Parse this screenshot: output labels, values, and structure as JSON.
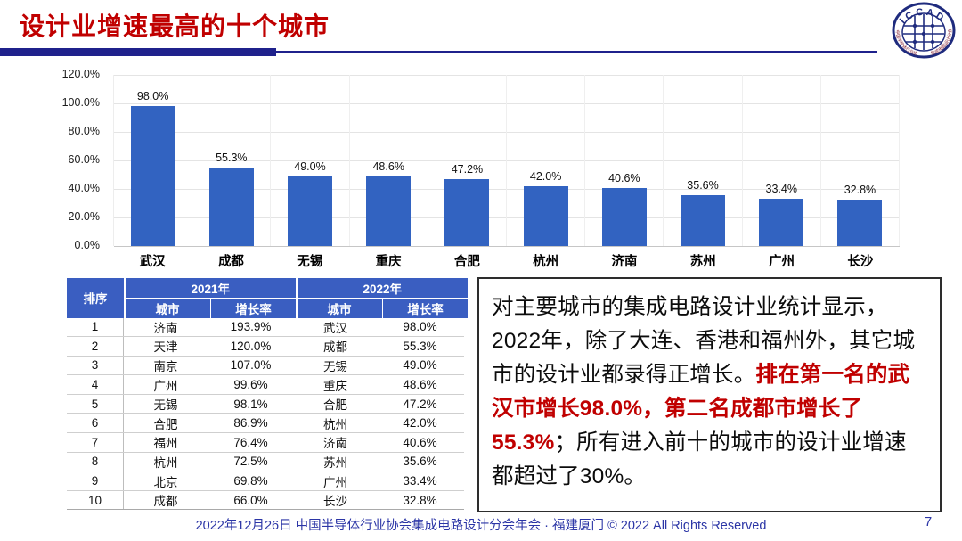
{
  "colors": {
    "title_red": "#C00000",
    "text_red": "#C00000",
    "bar_blue": "#3263C1",
    "header_blue": "#3A5EC1",
    "navy": "#1F218C",
    "footer_blue": "#2B35A6"
  },
  "header": {
    "title": "设计业增速最高的十个城市",
    "logo": {
      "name": "ICCAD",
      "arc_text": "I C C A D",
      "left_text": "中国半导体行业协会",
      "right_text": "集成电路设计分会"
    }
  },
  "chart_data": {
    "type": "bar",
    "title": "",
    "categories": [
      "武汉",
      "成都",
      "无锡",
      "重庆",
      "合肥",
      "杭州",
      "济南",
      "苏州",
      "广州",
      "长沙"
    ],
    "values": [
      98.0,
      55.3,
      49.0,
      48.6,
      47.2,
      42.0,
      40.6,
      35.6,
      33.4,
      32.8
    ],
    "data_labels": [
      "98.0%",
      "55.3%",
      "49.0%",
      "48.6%",
      "47.2%",
      "42.0%",
      "40.6%",
      "35.6%",
      "33.4%",
      "32.8%"
    ],
    "xlabel": "",
    "ylabel": "",
    "ylim": [
      0,
      120
    ],
    "yticks": [
      "0.0%",
      "20.0%",
      "40.0%",
      "60.0%",
      "80.0%",
      "100.0%",
      "120.0%"
    ],
    "grid": "on",
    "legend": "none",
    "bar_color": "#3263C1"
  },
  "table": {
    "rank_header": "排序",
    "group_headers": [
      "2021年",
      "2022年"
    ],
    "sub_headers": [
      "城市",
      "增长率",
      "城市",
      "增长率"
    ],
    "rows": [
      [
        "1",
        "济南",
        "193.9%",
        "武汉",
        "98.0%"
      ],
      [
        "2",
        "天津",
        "120.0%",
        "成都",
        "55.3%"
      ],
      [
        "3",
        "南京",
        "107.0%",
        "无锡",
        "49.0%"
      ],
      [
        "4",
        "广州",
        "99.6%",
        "重庆",
        "48.6%"
      ],
      [
        "5",
        "无锡",
        "98.1%",
        "合肥",
        "47.2%"
      ],
      [
        "6",
        "合肥",
        "86.9%",
        "杭州",
        "42.0%"
      ],
      [
        "7",
        "福州",
        "76.4%",
        "济南",
        "40.6%"
      ],
      [
        "8",
        "杭州",
        "72.5%",
        "苏州",
        "35.6%"
      ],
      [
        "9",
        "北京",
        "69.8%",
        "广州",
        "33.4%"
      ],
      [
        "10",
        "成都",
        "66.0%",
        "长沙",
        "32.8%"
      ]
    ]
  },
  "textbox": {
    "segment1": "对主要城市的集成电路设计业统计显示，2022年，除了大连、香港和福州外，其它城市的设计业都录得正增长。",
    "segment2_red": "排在第一名的武汉市增长98.0%，第二名成都市增长了55.3%",
    "segment3": "；所有进入前十的城市的设计业增速都超过了30%。"
  },
  "footer": {
    "text": "2022年12月26日 中国半导体行业协会集成电路设计分会年会 · 福建厦门 © 2022 All Rights Reserved",
    "page": "7"
  }
}
